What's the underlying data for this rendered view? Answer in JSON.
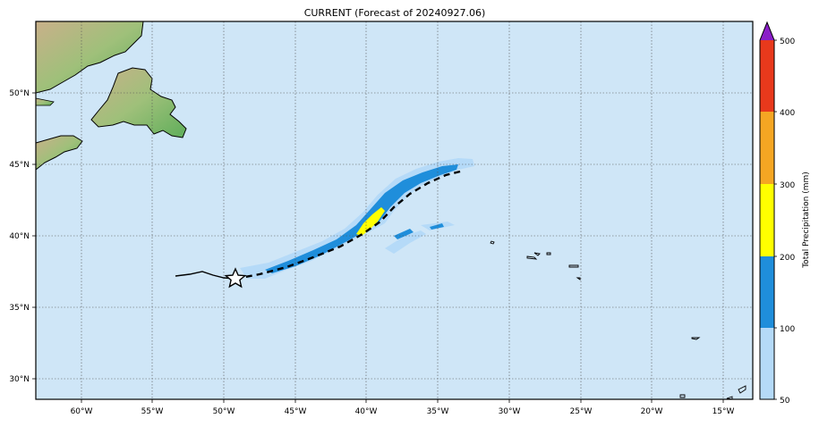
{
  "title": "CURRENT (Forecast of 20240927.06)",
  "map": {
    "lon_ticks": [
      "60°W",
      "55°W",
      "50°W",
      "45°W",
      "40°W",
      "35°W",
      "30°W",
      "25°W",
      "20°W",
      "15°W"
    ],
    "lat_ticks": [
      "50°N",
      "45°N",
      "40°N",
      "35°N",
      "30°N"
    ],
    "ocean_color": "#cfe6f7",
    "grid": true
  },
  "colorbar": {
    "label": "Total Precipitation (mm)",
    "ticks": [
      "50",
      "100",
      "200",
      "300",
      "400",
      "500"
    ],
    "colors": [
      "#b5daf8",
      "#1f8edb",
      "#ffff00",
      "#f5a623",
      "#e8391c",
      "#8a1ec8"
    ],
    "extend": "max"
  },
  "markers": {
    "current_position_icon": "star-icon",
    "past_track_style": "solid",
    "forecast_track_style": "dashed"
  }
}
